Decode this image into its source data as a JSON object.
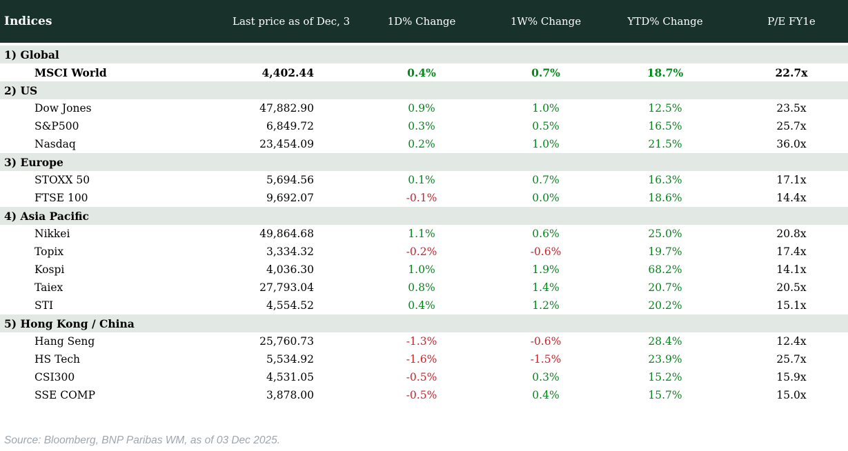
{
  "table": {
    "title": "Indices",
    "columns": [
      "Last price as of Dec, 3",
      "1D% Change",
      "1W% Change",
      "YTD% Change",
      "P/E FY1e"
    ],
    "sections": [
      {
        "label": "1) Global",
        "rows": [
          {
            "name": "MSCI World",
            "price": "4,402.44",
            "d1": "0.4%",
            "w1": "0.7%",
            "ytd": "18.7%",
            "pe": "22.7x",
            "bold": true
          }
        ]
      },
      {
        "label": "2) US",
        "rows": [
          {
            "name": "Dow Jones",
            "price": "47,882.90",
            "d1": "0.9%",
            "w1": "1.0%",
            "ytd": "12.5%",
            "pe": "23.5x",
            "bold": false
          },
          {
            "name": "S&P500",
            "price": "6,849.72",
            "d1": "0.3%",
            "w1": "0.5%",
            "ytd": "16.5%",
            "pe": "25.7x",
            "bold": false
          },
          {
            "name": "Nasdaq",
            "price": "23,454.09",
            "d1": "0.2%",
            "w1": "1.0%",
            "ytd": "21.5%",
            "pe": "36.0x",
            "bold": false
          }
        ]
      },
      {
        "label": "3) Europe",
        "rows": [
          {
            "name": "STOXX 50",
            "price": "5,694.56",
            "d1": "0.1%",
            "w1": "0.7%",
            "ytd": "16.3%",
            "pe": "17.1x",
            "bold": false
          },
          {
            "name": "FTSE 100",
            "price": "9,692.07",
            "d1": "-0.1%",
            "w1": "0.0%",
            "ytd": "18.6%",
            "pe": "14.4x",
            "bold": false
          }
        ]
      },
      {
        "label": "4) Asia Pacific",
        "rows": [
          {
            "name": "Nikkei",
            "price": "49,864.68",
            "d1": "1.1%",
            "w1": "0.6%",
            "ytd": "25.0%",
            "pe": "20.8x",
            "bold": false
          },
          {
            "name": "Topix",
            "price": "3,334.32",
            "d1": "-0.2%",
            "w1": "-0.6%",
            "ytd": "19.7%",
            "pe": "17.4x",
            "bold": false
          },
          {
            "name": "Kospi",
            "price": "4,036.30",
            "d1": "1.0%",
            "w1": "1.9%",
            "ytd": "68.2%",
            "pe": "14.1x",
            "bold": false
          },
          {
            "name": "Taiex",
            "price": "27,793.04",
            "d1": "0.8%",
            "w1": "1.4%",
            "ytd": "20.7%",
            "pe": "20.5x",
            "bold": false
          },
          {
            "name": "STI",
            "price": "4,554.52",
            "d1": "0.4%",
            "w1": "1.2%",
            "ytd": "20.2%",
            "pe": "15.1x",
            "bold": false
          }
        ]
      },
      {
        "label": "5) Hong Kong / China",
        "rows": [
          {
            "name": "Hang Seng",
            "price": "25,760.73",
            "d1": "-1.3%",
            "w1": "-0.6%",
            "ytd": "28.4%",
            "pe": "12.4x",
            "bold": false
          },
          {
            "name": "HS Tech",
            "price": "5,534.92",
            "d1": "-1.6%",
            "w1": "-1.5%",
            "ytd": "23.9%",
            "pe": "25.7x",
            "bold": false
          },
          {
            "name": "CSI300",
            "price": "4,531.05",
            "d1": "-0.5%",
            "w1": "0.3%",
            "ytd": "15.2%",
            "pe": "15.9x",
            "bold": false
          },
          {
            "name": "SSE COMP",
            "price": "3,878.00",
            "d1": "-0.5%",
            "w1": "0.4%",
            "ytd": "15.7%",
            "pe": "15.0x",
            "bold": false
          }
        ]
      }
    ]
  },
  "footer": {
    "source": "Source: Bloomberg, BNP Paribas WM, as of 03 Dec 2025."
  },
  "colors": {
    "header_bg": "#18322b",
    "header_text": "#ffffff",
    "section_bg": "#e2e9e4",
    "positive": "#008a1a",
    "negative": "#c9252b",
    "footer_text": "#9da5ad"
  },
  "chart_data": {
    "type": "table",
    "title": "Indices",
    "columns": [
      "Indices",
      "Last price as of Dec, 3",
      "1D% Change",
      "1W% Change",
      "YTD% Change",
      "P/E FY1e"
    ],
    "rows": [
      [
        "1) Global",
        "",
        "",
        "",
        "",
        ""
      ],
      [
        "MSCI World",
        "4,402.44",
        "0.4%",
        "0.7%",
        "18.7%",
        "22.7x"
      ],
      [
        "2) US",
        "",
        "",
        "",
        "",
        ""
      ],
      [
        "Dow Jones",
        "47,882.90",
        "0.9%",
        "1.0%",
        "12.5%",
        "23.5x"
      ],
      [
        "S&P500",
        "6,849.72",
        "0.3%",
        "0.5%",
        "16.5%",
        "25.7x"
      ],
      [
        "Nasdaq",
        "23,454.09",
        "0.2%",
        "1.0%",
        "21.5%",
        "36.0x"
      ],
      [
        "3) Europe",
        "",
        "",
        "",
        "",
        ""
      ],
      [
        "STOXX 50",
        "5,694.56",
        "0.1%",
        "0.7%",
        "16.3%",
        "17.1x"
      ],
      [
        "FTSE 100",
        "9,692.07",
        "-0.1%",
        "0.0%",
        "18.6%",
        "14.4x"
      ],
      [
        "4) Asia Pacific",
        "",
        "",
        "",
        "",
        ""
      ],
      [
        "Nikkei",
        "49,864.68",
        "1.1%",
        "0.6%",
        "25.0%",
        "20.8x"
      ],
      [
        "Topix",
        "3,334.32",
        "-0.2%",
        "-0.6%",
        "19.7%",
        "17.4x"
      ],
      [
        "Kospi",
        "4,036.30",
        "1.0%",
        "1.9%",
        "68.2%",
        "14.1x"
      ],
      [
        "Taiex",
        "27,793.04",
        "0.8%",
        "1.4%",
        "20.7%",
        "20.5x"
      ],
      [
        "STI",
        "4,554.52",
        "0.4%",
        "1.2%",
        "20.2%",
        "15.1x"
      ],
      [
        "5) Hong Kong / China",
        "",
        "",
        "",
        "",
        ""
      ],
      [
        "Hang Seng",
        "25,760.73",
        "-1.3%",
        "-0.6%",
        "28.4%",
        "12.4x"
      ],
      [
        "HS Tech",
        "5,534.92",
        "-1.6%",
        "-1.5%",
        "23.9%",
        "25.7x"
      ],
      [
        "CSI300",
        "4,531.05",
        "-0.5%",
        "0.3%",
        "15.2%",
        "15.9x"
      ],
      [
        "SSE COMP",
        "3,878.00",
        "-0.5%",
        "0.4%",
        "15.7%",
        "15.0x"
      ]
    ]
  }
}
